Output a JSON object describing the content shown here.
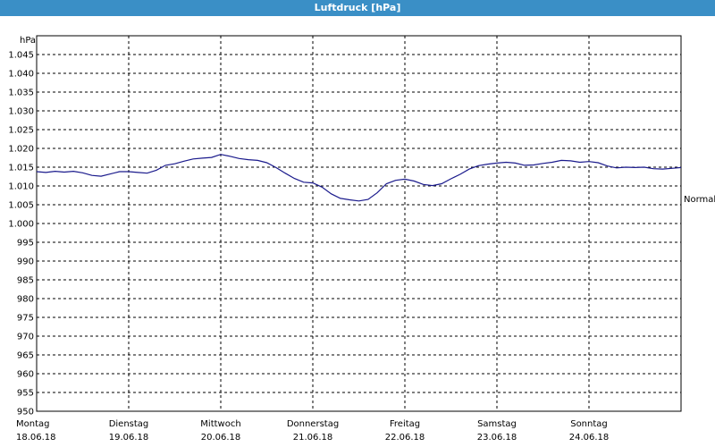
{
  "window": {
    "title": "Luftdruck [hPa]"
  },
  "chart_data": {
    "type": "line",
    "title": "Luftdruck [hPa]",
    "ylabel": "hPa",
    "xlabel": "",
    "ylim": [
      950,
      1050
    ],
    "xlim": [
      0,
      7
    ],
    "y_ticks": [
      1045,
      1040,
      1035,
      1030,
      1025,
      1020,
      1015,
      1010,
      1005,
      1000,
      995,
      990,
      985,
      980,
      975,
      970,
      965,
      960,
      955,
      950
    ],
    "y_tick_labels": [
      "1.045",
      "1.040",
      "1.035",
      "1.030",
      "1.025",
      "1.020",
      "1.015",
      "1.010",
      "1.005",
      "1.000",
      "995",
      "990",
      "985",
      "980",
      "975",
      "970",
      "965",
      "960",
      "955",
      "950"
    ],
    "x_ticks": [
      {
        "day": "Montag",
        "date": "18.06.18"
      },
      {
        "day": "Dienstag",
        "date": "19.06.18"
      },
      {
        "day": "Mittwoch",
        "date": "20.06.18"
      },
      {
        "day": "Donnerstag",
        "date": "21.06.18"
      },
      {
        "day": "Freitag",
        "date": "22.06.18"
      },
      {
        "day": "Samstag",
        "date": "23.06.18"
      },
      {
        "day": "Sonntag",
        "date": "24.06.18"
      }
    ],
    "grid": true,
    "annotation": "Normal",
    "annotation_value": 1006.5,
    "series": [
      {
        "color": "#1a1a8c",
        "x": [
          0,
          0.1,
          0.2,
          0.3,
          0.4,
          0.5,
          0.6,
          0.7,
          0.8,
          0.9,
          1.0,
          1.1,
          1.2,
          1.3,
          1.4,
          1.5,
          1.6,
          1.7,
          1.8,
          1.9,
          2.0,
          2.1,
          2.2,
          2.3,
          2.4,
          2.5,
          2.6,
          2.7,
          2.8,
          2.9,
          3.0,
          3.1,
          3.2,
          3.3,
          3.4,
          3.5,
          3.6,
          3.7,
          3.8,
          3.9,
          4.0,
          4.1,
          4.2,
          4.3,
          4.4,
          4.5,
          4.6,
          4.7,
          4.8,
          4.9,
          5.0,
          5.1,
          5.2,
          5.3,
          5.4,
          5.5,
          5.6,
          5.7,
          5.8,
          5.9,
          6.0,
          6.1,
          6.2,
          6.3,
          6.4,
          6.5,
          6.6,
          6.7,
          6.8,
          6.9,
          7.0
        ],
        "y": [
          1013.8,
          1013.6,
          1013.9,
          1013.7,
          1013.9,
          1013.5,
          1012.8,
          1012.6,
          1013.2,
          1013.8,
          1013.8,
          1013.6,
          1013.4,
          1014.2,
          1015.5,
          1015.9,
          1016.6,
          1017.2,
          1017.4,
          1017.6,
          1018.4,
          1017.9,
          1017.3,
          1017.0,
          1016.8,
          1016.2,
          1014.9,
          1013.4,
          1012.0,
          1011.0,
          1010.8,
          1009.7,
          1007.9,
          1006.7,
          1006.3,
          1006.0,
          1006.4,
          1008.2,
          1010.6,
          1011.5,
          1011.8,
          1011.3,
          1010.4,
          1010.1,
          1010.6,
          1011.9,
          1013.1,
          1014.5,
          1015.4,
          1015.8,
          1016.1,
          1016.3,
          1016.1,
          1015.5,
          1015.6,
          1016.0,
          1016.3,
          1016.8,
          1016.7,
          1016.3,
          1016.5,
          1016.2,
          1015.3,
          1014.8,
          1015.0,
          1014.9,
          1015.0,
          1014.6,
          1014.5,
          1014.7,
          1014.9
        ]
      }
    ]
  }
}
